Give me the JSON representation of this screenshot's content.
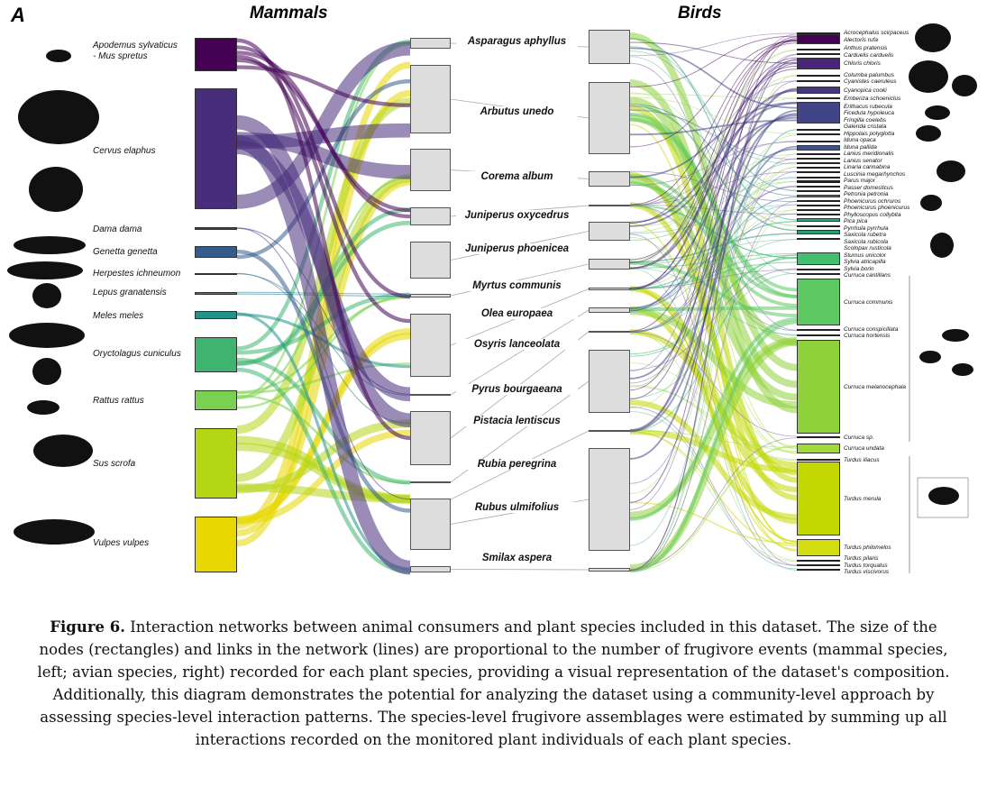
{
  "panel_label": "A",
  "mammals_title": "Mammals",
  "birds_title": "Birds",
  "mammals": [
    {
      "name": "Apodemus sylvaticus\n- Mus spretus",
      "color": "#440154"
    },
    {
      "name": "Cervus elaphus",
      "color": "#472d7b"
    },
    {
      "name": "Dama dama",
      "color": "#46337e"
    },
    {
      "name": "Genetta genetta",
      "color": "#365c8d"
    },
    {
      "name": "Herpestes ichneumon",
      "color": "#2c728e"
    },
    {
      "name": "Lepus granatensis",
      "color": "#26828e"
    },
    {
      "name": "Meles meles",
      "color": "#21918c"
    },
    {
      "name": "Oryctolagus cuniculus",
      "color": "#3fb470"
    },
    {
      "name": "Rattus rattus",
      "color": "#7ad151"
    },
    {
      "name": "Sus scrofa",
      "color": "#b5d615"
    },
    {
      "name": "Vulpes vulpes",
      "color": "#e8d700"
    }
  ],
  "plants": [
    "Asparagus aphyllus",
    "Arbutus unedo",
    "Corema album",
    "Juniperus oxycedrus",
    "Juniperus phoenicea",
    "Myrtus communis",
    "Olea europaea",
    "Osyris lanceolata",
    "Pyrus bourgaeana",
    "Pistacia lentiscus",
    "Rubia peregrina",
    "Rubus ulmifolius",
    "Smilax aspera"
  ],
  "birds": [
    {
      "name": "Acrocephalus scirpaceus",
      "color": "#222"
    },
    {
      "name": "Alectoris rufa",
      "color": "#440154"
    },
    {
      "name": "Anthus pratensis",
      "color": "#222"
    },
    {
      "name": "Carduelis carduelis",
      "color": "#222"
    },
    {
      "name": "Chloris chloris",
      "color": "#482576"
    },
    {
      "name": "Columba palumbus",
      "color": "#222"
    },
    {
      "name": "Cyanistes caeruleus",
      "color": "#222"
    },
    {
      "name": "Cyanopica cooki",
      "color": "#463480"
    },
    {
      "name": "Emberiza schoeniclus",
      "color": "#222"
    },
    {
      "name": "Erithacus rubecula",
      "color": "#414487"
    },
    {
      "name": "Ficedula hypoleuca",
      "color": "#222"
    },
    {
      "name": "Fringilla coelebs",
      "color": "#222"
    },
    {
      "name": "Galerida cristata",
      "color": "#222"
    },
    {
      "name": "Hippolais polyglotta",
      "color": "#3b528b"
    },
    {
      "name": "Iduna opaca",
      "color": "#222"
    },
    {
      "name": "Iduna pallida",
      "color": "#222"
    },
    {
      "name": "Lanius meridionalis",
      "color": "#222"
    },
    {
      "name": "Lanius senator",
      "color": "#222"
    },
    {
      "name": "Linaria cannabina",
      "color": "#222"
    },
    {
      "name": "Luscinia megarhynchos",
      "color": "#222"
    },
    {
      "name": "Parus major",
      "color": "#222"
    },
    {
      "name": "Passer domesticus",
      "color": "#222"
    },
    {
      "name": "Petronia petronia",
      "color": "#222"
    },
    {
      "name": "Phoenicurus ochruros",
      "color": "#2a788e"
    },
    {
      "name": "Phoenicurus phoenicurus",
      "color": "#222"
    },
    {
      "name": "Phylloscopus collybita",
      "color": "#222"
    },
    {
      "name": "Pica pica",
      "color": "#222"
    },
    {
      "name": "Pyrrhula pyrrhula",
      "color": "#222"
    },
    {
      "name": "Saxicola rubetra",
      "color": "#22a884"
    },
    {
      "name": "Saxicola rubicola",
      "color": "#222"
    },
    {
      "name": "Scolopax rusticola",
      "color": "#2a9d70"
    },
    {
      "name": "Sturnus unicolor",
      "color": "#222"
    },
    {
      "name": "Sylvia atricapilla",
      "color": "#44bf70"
    },
    {
      "name": "Sylvia borin",
      "color": "#222"
    },
    {
      "name": "Curruca cantillans",
      "color": "#222"
    },
    {
      "name": "Curruca communis",
      "color": "#5ec962"
    },
    {
      "name": "Curruca conspicillata",
      "color": "#222"
    },
    {
      "name": "Curruca hortensis",
      "color": "#222"
    },
    {
      "name": "Curruca melanocephala",
      "color": "#8fd13a"
    },
    {
      "name": "Curruca sp.",
      "color": "#222"
    },
    {
      "name": "Curruca undata",
      "color": "#a0da39"
    },
    {
      "name": "Turdus iliacus",
      "color": "#222"
    },
    {
      "name": "Turdus merula",
      "color": "#c2d800"
    },
    {
      "name": "Turdus philomelos",
      "color": "#d2dc10"
    },
    {
      "name": "Turdus pilaris",
      "color": "#222"
    },
    {
      "name": "Turdus torquatus",
      "color": "#222"
    },
    {
      "name": "Turdus viscivorus",
      "color": "#222"
    }
  ],
  "caption": {
    "label": "Figure 6.",
    "text": " Interaction networks between animal consumers and plant species included in this dataset. The size of the nodes (rectangles) and links in the network (lines) are proportional to the number of frugivore events (mammal species, left; avian species, right) recorded for each plant species, providing a visual representation of the dataset's composition. Additionally, this diagram demonstrates the potential for analyzing the dataset using a community-level approach by assessing species-level interaction patterns. The species-level frugivore assemblages were estimated by summing up all interactions recorded on the monitored plant individuals of each plant species."
  }
}
